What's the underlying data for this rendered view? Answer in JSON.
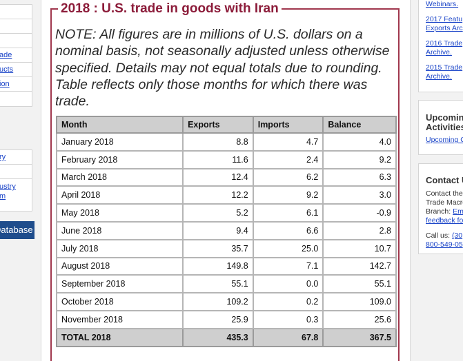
{
  "left_sidebar": {
    "box1_rows": [
      "",
      "",
      "",
      "ade",
      "ucts",
      "ion",
      ""
    ],
    "box2_rows": [
      "ry",
      "",
      "ustry\nm"
    ],
    "database_button": "Database"
  },
  "main": {
    "legend_title": "2018 : U.S. trade in goods with Iran",
    "note": "NOTE: All figures are in millions of U.S. dollars on a nominal basis, not seasonally adjusted unless otherwise specified. Details may not equal totals due to rounding. Table reflects only those months for which there was trade.",
    "table": {
      "headers": [
        "Month",
        "Exports",
        "Imports",
        "Balance"
      ],
      "rows": [
        [
          "January 2018",
          "8.8",
          "4.7",
          "4.0"
        ],
        [
          "February 2018",
          "11.6",
          "2.4",
          "9.2"
        ],
        [
          "March 2018",
          "12.4",
          "6.2",
          "6.3"
        ],
        [
          "April 2018",
          "12.2",
          "9.2",
          "3.0"
        ],
        [
          "May 2018",
          "5.2",
          "6.1",
          "-0.9"
        ],
        [
          "June 2018",
          "9.4",
          "6.6",
          "2.8"
        ],
        [
          "July 2018",
          "35.7",
          "25.0",
          "10.7"
        ],
        [
          "August 2018",
          "149.8",
          "7.1",
          "142.7"
        ],
        [
          "September 2018",
          "55.1",
          "0.0",
          "55.1"
        ],
        [
          "October 2018",
          "109.2",
          "0.2",
          "109.0"
        ],
        [
          "November 2018",
          "25.9",
          "0.3",
          "25.6"
        ]
      ],
      "total": [
        "TOTAL 2018",
        "435.3",
        "67.8",
        "367.5"
      ]
    }
  },
  "right_sidebar": {
    "links1": [
      "Webinars.",
      "2017 Featu",
      "Exports Arc",
      "2016 Trade",
      "Archive.",
      "2015 Trade",
      "Archive."
    ],
    "upcoming_heading": [
      "Upcomin",
      "Activities"
    ],
    "upcoming_link": "Upcoming C",
    "contact_heading": "Contact U",
    "contact_text": [
      "Contact the",
      "Trade Macro",
      "Branch: "
    ],
    "contact_email_link": "Ema",
    "contact_feedback_link": "feedback fo",
    "call_text": "Call us: ",
    "call_link1": "(30",
    "call_link2": "800-549-05"
  }
}
